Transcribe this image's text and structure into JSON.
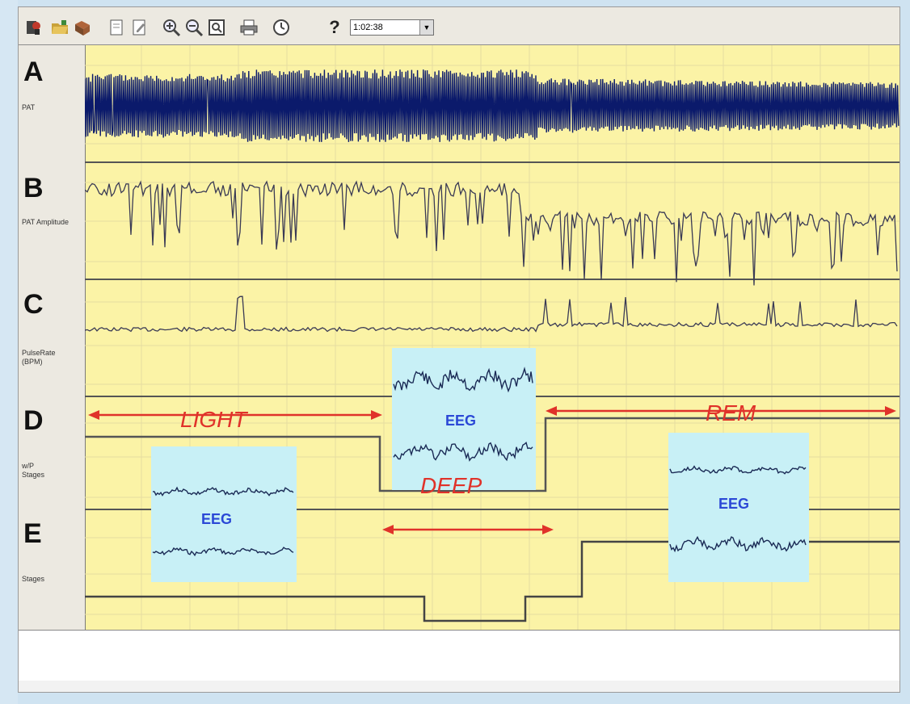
{
  "toolbar": {
    "buttons": [
      {
        "name": "patient-icon"
      },
      {
        "name": "open-folder-icon"
      },
      {
        "name": "report-icon"
      },
      {
        "name": "page-icon"
      },
      {
        "name": "page-edit-icon"
      },
      {
        "name": "zoom-in-icon"
      },
      {
        "name": "zoom-out-icon"
      },
      {
        "name": "zoom-fit-icon"
      },
      {
        "name": "print-icon"
      },
      {
        "name": "clock-icon"
      },
      {
        "name": "help-icon"
      }
    ],
    "help_label": "?",
    "time_value": "1:02:38"
  },
  "panels": [
    {
      "letter": "A",
      "channel": "PAT"
    },
    {
      "letter": "B",
      "channel": "PAT Amplitude"
    },
    {
      "letter": "C",
      "channel": "PulseRate\n(BPM)"
    },
    {
      "letter": "D",
      "channel": "w/P\nStages"
    },
    {
      "letter": "E",
      "channel": "Stages"
    }
  ],
  "stages": {
    "light": "LIGHT",
    "deep": "DEEP",
    "rem": "REM"
  },
  "eeg_label": "EEG",
  "colors": {
    "signal": "#0b1a6b",
    "trace": "#3a3a55",
    "arrow": "#e0322a",
    "eeg_bg": "#c8f0f6",
    "plot_bg": "#fbf3a6",
    "eeg_text": "#2b48d6"
  }
}
